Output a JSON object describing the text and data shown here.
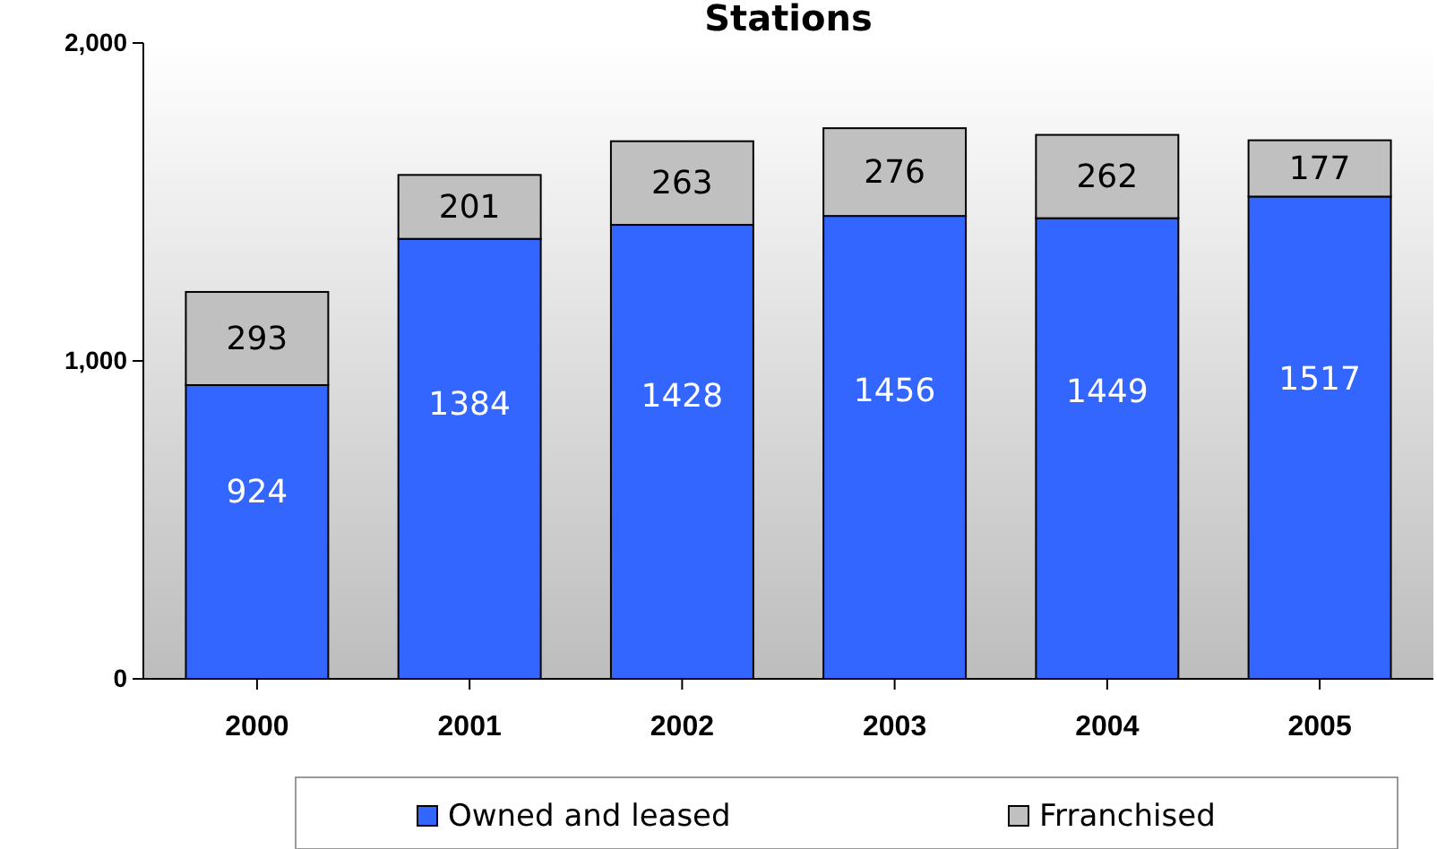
{
  "chart_data": {
    "type": "bar",
    "title": "Stations",
    "categories": [
      "2000",
      "2001",
      "2002",
      "2003",
      "2004",
      "2005"
    ],
    "stacked": true,
    "series": [
      {
        "name": "Owned and leased",
        "color": "#3366ff",
        "values": [
          924,
          1384,
          1428,
          1456,
          1449,
          1517
        ]
      },
      {
        "name": "Frranchised",
        "color": "#c0c0c0",
        "values": [
          293,
          201,
          263,
          276,
          262,
          177
        ]
      }
    ],
    "ylim": [
      0,
      2000
    ],
    "yticks": [
      0,
      {
        "value": 1000,
        "label": "1,000"
      },
      {
        "value": 2000,
        "label": "2,000"
      }
    ],
    "data_labels": true,
    "legend": "bottom"
  }
}
